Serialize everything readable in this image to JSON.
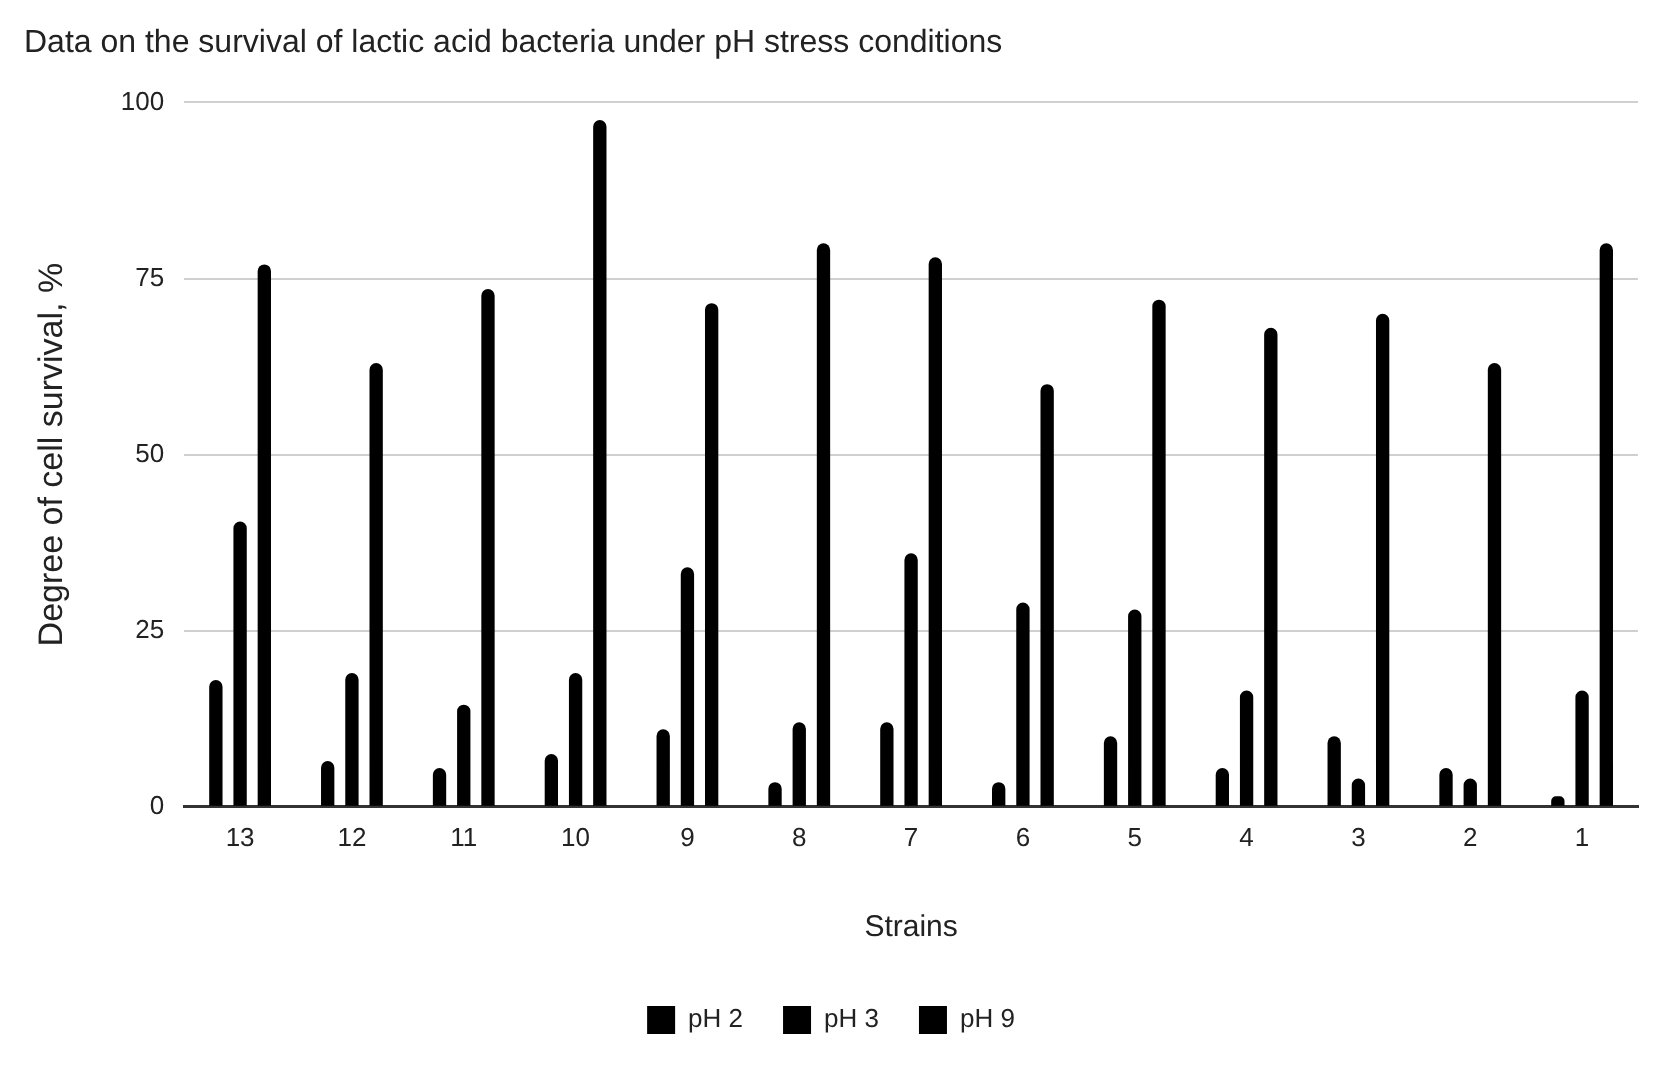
{
  "chart_data": {
    "type": "bar",
    "title": "Data on the survival of lactic acid bacteria under pH stress conditions",
    "xlabel": "Strains",
    "ylabel": "Degree of cell survival, %",
    "categories": [
      "13",
      "12",
      "11",
      "10",
      "9",
      "8",
      "7",
      "6",
      "5",
      "4",
      "3",
      "2",
      "1"
    ],
    "series": [
      {
        "name": "pH 2",
        "color": "#000000",
        "values": [
          18,
          6.5,
          5.5,
          7.5,
          11,
          3.5,
          12,
          3.5,
          10,
          5.5,
          10,
          5.5,
          1.5
        ]
      },
      {
        "name": "pH 3",
        "color": "#000000",
        "values": [
          40.5,
          19,
          14.5,
          19,
          34,
          12,
          36,
          29,
          28,
          16.5,
          4,
          4,
          16.5
        ]
      },
      {
        "name": "pH 9",
        "color": "#000000",
        "values": [
          77,
          63,
          73.5,
          97.5,
          71.5,
          80,
          78,
          60,
          72,
          68,
          70,
          63,
          80
        ]
      }
    ],
    "ylim": [
      0,
      100
    ],
    "yticks": [
      0,
      25,
      50,
      75,
      100
    ],
    "grid": "y",
    "legend": "bottom"
  }
}
